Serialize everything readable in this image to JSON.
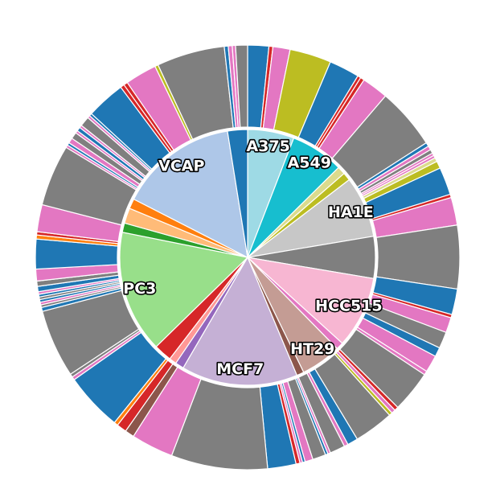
{
  "chart_data": {
    "type": "sunburst",
    "inner_ring": [
      {
        "label": "A375",
        "value": 7.0,
        "color": "#9edae5"
      },
      {
        "label": "A549",
        "value": 8.0,
        "color": "#17becf"
      },
      {
        "label": "",
        "value": 1.2,
        "color": "#dbdb8d"
      },
      {
        "label": "",
        "value": 1.2,
        "color": "#bcbd22"
      },
      {
        "label": "HA1E",
        "value": 9.2,
        "color": "#c7c7c7"
      },
      {
        "label": "",
        "value": 6.3,
        "color": "#7f7f7f"
      },
      {
        "label": "HCC515",
        "value": 10.8,
        "color": "#f7b6d2"
      },
      {
        "label": "",
        "value": 1.1,
        "color": "#e377c2"
      },
      {
        "label": "HT29",
        "value": 6.1,
        "color": "#c49c94"
      },
      {
        "label": "",
        "value": 1.1,
        "color": "#8c564b"
      },
      {
        "label": "MCF7",
        "value": 17.5,
        "color": "#c5b0d5"
      },
      {
        "label": "",
        "value": 1.3,
        "color": "#9467bd"
      },
      {
        "label": "",
        "value": 1.1,
        "color": "#ff9896"
      },
      {
        "label": "",
        "value": 2.7,
        "color": "#d62728"
      },
      {
        "label": "PC3",
        "value": 18.4,
        "color": "#98df8a"
      },
      {
        "label": "",
        "value": 1.4,
        "color": "#2ca02c"
      },
      {
        "label": "",
        "value": 2.3,
        "color": "#ffbb78"
      },
      {
        "label": "",
        "value": 1.5,
        "color": "#ff7f0e"
      },
      {
        "label": "VCAP",
        "value": 17.8,
        "color": "#aec7e8"
      },
      {
        "label": "",
        "value": 3.0,
        "color": "#1f77b4"
      }
    ],
    "outer_ring": [
      {
        "value": 3.2,
        "color": "#1f77b4"
      },
      {
        "value": 0.6,
        "color": "#d62728"
      },
      {
        "value": 2.6,
        "color": "#e377c2"
      },
      {
        "value": 6.3,
        "color": "#bcbd22"
      },
      {
        "value": 4.6,
        "color": "#1f77b4"
      },
      {
        "value": 0.5,
        "color": "#d62728"
      },
      {
        "value": 0.6,
        "color": "#d62728"
      },
      {
        "value": 4.0,
        "color": "#e377c2"
      },
      {
        "value": 9.3,
        "color": "#7f7f7f"
      },
      {
        "value": 0.6,
        "color": "#1f77b4"
      },
      {
        "value": 0.6,
        "color": "#e377c2"
      },
      {
        "value": 0.6,
        "color": "#7f7f7f"
      },
      {
        "value": 0.4,
        "color": "#e377c2"
      },
      {
        "value": 0.4,
        "color": "#e377c2"
      },
      {
        "value": 0.6,
        "color": "#dbdb8d"
      },
      {
        "value": 1.1,
        "color": "#bcbd22"
      },
      {
        "value": 4.2,
        "color": "#1f77b4"
      },
      {
        "value": 0.5,
        "color": "#d62728"
      },
      {
        "value": 4.2,
        "color": "#e377c2"
      },
      {
        "value": 9.6,
        "color": "#7f7f7f"
      },
      {
        "value": 3.9,
        "color": "#1f77b4"
      },
      {
        "value": 0.5,
        "color": "#d62728"
      },
      {
        "value": 2.3,
        "color": "#e377c2"
      },
      {
        "value": 2.5,
        "color": "#7f7f7f"
      },
      {
        "value": 1.4,
        "color": "#1f77b4"
      },
      {
        "value": 2.6,
        "color": "#e377c2"
      },
      {
        "value": 0.6,
        "color": "#e377c2"
      },
      {
        "value": 6.3,
        "color": "#7f7f7f"
      },
      {
        "value": 0.6,
        "color": "#d62728"
      },
      {
        "value": 0.6,
        "color": "#e377c2"
      },
      {
        "value": 0.5,
        "color": "#bcbd22"
      },
      {
        "value": 6.0,
        "color": "#7f7f7f"
      },
      {
        "value": 1.6,
        "color": "#1f77b4"
      },
      {
        "value": 0.6,
        "color": "#e377c2"
      },
      {
        "value": 2.3,
        "color": "#7f7f7f"
      },
      {
        "value": 0.4,
        "color": "#e377c2"
      },
      {
        "value": 0.4,
        "color": "#1f77b4"
      },
      {
        "value": 2.0,
        "color": "#7f7f7f"
      },
      {
        "value": 1.2,
        "color": "#e377c2"
      },
      {
        "value": 0.4,
        "color": "#1f77b4"
      },
      {
        "value": 0.4,
        "color": "#e377c2"
      },
      {
        "value": 0.6,
        "color": "#d62728"
      },
      {
        "value": 4.3,
        "color": "#1f77b4"
      },
      {
        "value": 14.6,
        "color": "#7f7f7f"
      },
      {
        "value": 6.4,
        "color": "#e377c2"
      },
      {
        "value": 1.4,
        "color": "#8c564b"
      },
      {
        "value": 1.5,
        "color": "#d62728"
      },
      {
        "value": 0.6,
        "color": "#ff7f0e"
      },
      {
        "value": 8.8,
        "color": "#1f77b4"
      },
      {
        "value": 0.5,
        "color": "#e377c2"
      },
      {
        "value": 0.5,
        "color": "#7f7f7f"
      },
      {
        "value": 10.3,
        "color": "#7f7f7f"
      },
      {
        "value": 0.6,
        "color": "#1f77b4"
      },
      {
        "value": 0.4,
        "color": "#7f7f7f"
      },
      {
        "value": 0.4,
        "color": "#e377c2"
      },
      {
        "value": 0.4,
        "color": "#1f77b4"
      },
      {
        "value": 0.4,
        "color": "#7f7f7f"
      },
      {
        "value": 0.4,
        "color": "#1f77b4"
      },
      {
        "value": 0.4,
        "color": "#e377c2"
      },
      {
        "value": 0.8,
        "color": "#1f77b4"
      },
      {
        "value": 0.8,
        "color": "#7f7f7f"
      },
      {
        "value": 1.8,
        "color": "#e377c2"
      },
      {
        "value": 4.5,
        "color": "#1f77b4"
      },
      {
        "value": 0.6,
        "color": "#ff7f0e"
      },
      {
        "value": 0.5,
        "color": "#d62728"
      },
      {
        "value": 4.1,
        "color": "#e377c2"
      },
      {
        "value": 9.3,
        "color": "#7f7f7f"
      },
      {
        "value": 0.4,
        "color": "#e377c2"
      },
      {
        "value": 0.4,
        "color": "#1f77b4"
      },
      {
        "value": 0.8,
        "color": "#e377c2"
      },
      {
        "value": 1.0,
        "color": "#7f7f7f"
      },
      {
        "value": 0.4,
        "color": "#e377c2"
      },
      {
        "value": 0.6,
        "color": "#1f77b4"
      },
      {
        "value": 0.4,
        "color": "#e377c2"
      },
      {
        "value": 1.5,
        "color": "#7f7f7f"
      },
      {
        "value": 0.4,
        "color": "#e377c2"
      },
      {
        "value": 0.4,
        "color": "#1f77b4"
      },
      {
        "value": 5.9,
        "color": "#1f77b4"
      },
      {
        "value": 0.6,
        "color": "#d62728"
      },
      {
        "value": 0.6,
        "color": "#d62728"
      },
      {
        "value": 4.8,
        "color": "#e377c2"
      },
      {
        "value": 0.5,
        "color": "#bcbd22"
      },
      {
        "value": 10.3,
        "color": "#7f7f7f"
      },
      {
        "value": 0.6,
        "color": "#1f77b4"
      },
      {
        "value": 0.6,
        "color": "#e377c2"
      },
      {
        "value": 0.5,
        "color": "#e377c2"
      },
      {
        "value": 1.8,
        "color": "#7f7f7f"
      }
    ]
  }
}
